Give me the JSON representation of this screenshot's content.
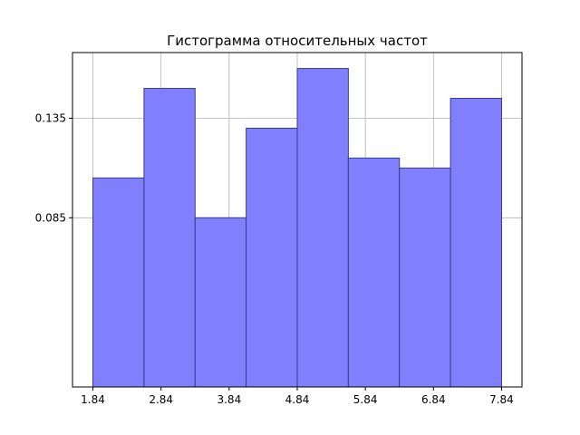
{
  "chart_data": {
    "type": "bar",
    "title": "Гистограмма относительных частот",
    "xlabel": "",
    "ylabel": "",
    "bin_edges": [
      1.84,
      2.59,
      3.34,
      4.09,
      4.84,
      5.59,
      6.34,
      7.09,
      7.84
    ],
    "values": [
      0.105,
      0.15,
      0.085,
      0.13,
      0.16,
      0.115,
      0.11,
      0.145
    ],
    "xticks": [
      1.84,
      2.84,
      3.84,
      4.84,
      5.84,
      6.84,
      7.84
    ],
    "xtick_labels": [
      "1.84",
      "2.84",
      "3.84",
      "4.84",
      "5.84",
      "6.84",
      "7.84"
    ],
    "yticks": [
      0.085,
      0.135
    ],
    "ytick_labels": [
      "0.085",
      "0.135"
    ],
    "xlim": [
      1.54,
      8.14
    ],
    "ylim": [
      0.0,
      0.168
    ],
    "grid": true,
    "bar_color": "#8080ff",
    "edge_color": "#3a3a8a",
    "grid_color": "#b0b0b0"
  }
}
